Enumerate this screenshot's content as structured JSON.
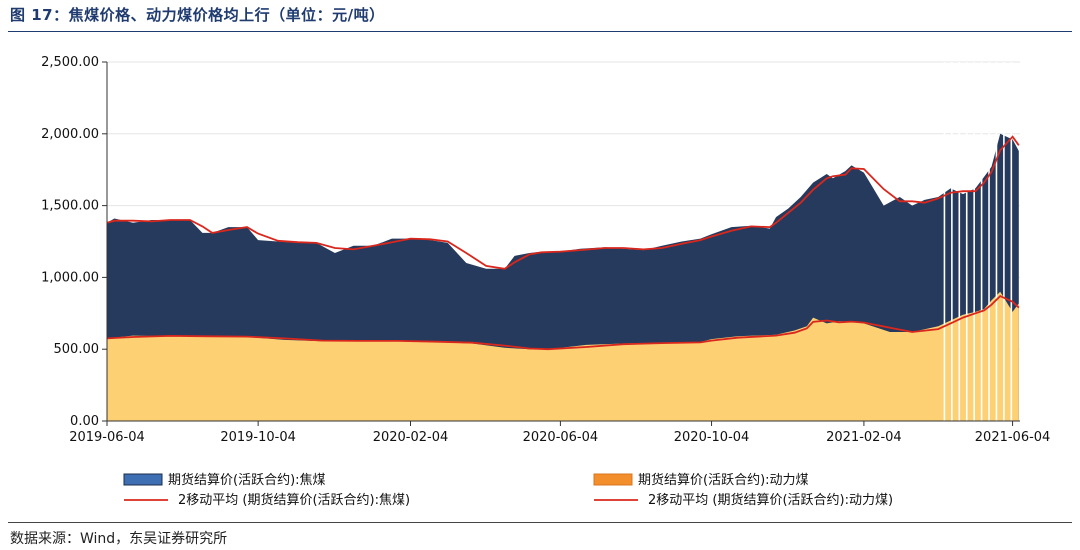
{
  "figure": {
    "title": "图 17：焦煤价格、动力煤价格均上行（单位：元/吨）",
    "source": "数据来源：Wind，东吴证券研究所"
  },
  "colors": {
    "coking": "#253a5c",
    "coking_legend": "#3f6fb3",
    "thermal": "#fdd074",
    "thermal_legend": "#f28e2b",
    "ma_line": "#d9271d"
  },
  "chart_data": {
    "type": "area",
    "title": "焦煤价格、动力煤价格均上行（单位：元/吨）",
    "xlabel": "",
    "ylabel": "",
    "ylim": [
      0,
      2500
    ],
    "xlim": [
      "2019-06-04",
      "2021-06-10"
    ],
    "yticks": [
      "0.00",
      "500.00",
      "1,000.00",
      "1,500.00",
      "2,000.00",
      "2,500.00"
    ],
    "xticks": [
      "2019-06-04",
      "2019-10-04",
      "2020-02-04",
      "2020-06-04",
      "2020-10-04",
      "2021-02-04",
      "2021-06-04"
    ],
    "legend_position": "bottom",
    "stacked": false,
    "series": [
      {
        "name": "期货结算价(活跃合约):焦煤",
        "style": "filled-area",
        "x": [
          "2019-06-04",
          "2019-06-10",
          "2019-06-25",
          "2019-07-10",
          "2019-07-25",
          "2019-08-10",
          "2019-08-20",
          "2019-08-28",
          "2019-09-10",
          "2019-09-25",
          "2019-10-04",
          "2019-10-20",
          "2019-11-05",
          "2019-11-20",
          "2019-12-05",
          "2019-12-20",
          "2020-01-05",
          "2020-01-20",
          "2020-02-04",
          "2020-02-20",
          "2020-03-05",
          "2020-03-20",
          "2020-04-05",
          "2020-04-20",
          "2020-04-28",
          "2020-05-10",
          "2020-05-20",
          "2020-06-04",
          "2020-06-20",
          "2020-07-10",
          "2020-07-25",
          "2020-08-10",
          "2020-08-25",
          "2020-09-10",
          "2020-09-25",
          "2020-10-04",
          "2020-10-20",
          "2020-11-05",
          "2020-11-20",
          "2020-11-25",
          "2020-12-05",
          "2020-12-15",
          "2020-12-25",
          "2021-01-05",
          "2021-01-10",
          "2021-01-20",
          "2021-01-25",
          "2021-02-04",
          "2021-02-20",
          "2021-03-05",
          "2021-03-15",
          "2021-03-25",
          "2021-04-05",
          "2021-04-15",
          "2021-04-25",
          "2021-05-05",
          "2021-05-12",
          "2021-05-18",
          "2021-05-25",
          "2021-06-04",
          "2021-06-09"
        ],
        "values": [
          1380,
          1410,
          1380,
          1400,
          1400,
          1400,
          1310,
          1310,
          1350,
          1350,
          1260,
          1250,
          1240,
          1240,
          1170,
          1220,
          1220,
          1270,
          1270,
          1260,
          1240,
          1100,
          1060,
          1060,
          1150,
          1170,
          1180,
          1180,
          1200,
          1210,
          1200,
          1190,
          1220,
          1250,
          1270,
          1300,
          1350,
          1360,
          1340,
          1420,
          1480,
          1560,
          1660,
          1720,
          1690,
          1740,
          1780,
          1730,
          1500,
          1560,
          1500,
          1540,
          1560,
          1620,
          1580,
          1620,
          1700,
          1770,
          2000,
          1960,
          1880
        ]
      },
      {
        "name": "期货结算价(活跃合约):动力煤",
        "style": "filled-area",
        "x": [
          "2019-06-04",
          "2019-06-25",
          "2019-07-25",
          "2019-08-25",
          "2019-09-25",
          "2019-10-25",
          "2019-11-25",
          "2019-12-25",
          "2020-01-25",
          "2020-02-25",
          "2020-03-25",
          "2020-04-20",
          "2020-05-10",
          "2020-05-25",
          "2020-06-25",
          "2020-07-25",
          "2020-08-25",
          "2020-09-25",
          "2020-10-04",
          "2020-10-25",
          "2020-11-25",
          "2020-12-10",
          "2020-12-20",
          "2020-12-25",
          "2021-01-05",
          "2021-01-15",
          "2021-01-25",
          "2021-02-04",
          "2021-02-25",
          "2021-03-15",
          "2021-04-05",
          "2021-04-15",
          "2021-04-25",
          "2021-05-05",
          "2021-05-12",
          "2021-05-18",
          "2021-05-25",
          "2021-06-04",
          "2021-06-09"
        ],
        "values": [
          575,
          595,
          590,
          590,
          585,
          565,
          555,
          560,
          555,
          550,
          540,
          510,
          500,
          500,
          530,
          540,
          545,
          550,
          570,
          590,
          600,
          630,
          660,
          720,
          680,
          695,
          690,
          680,
          620,
          620,
          660,
          700,
          740,
          760,
          780,
          840,
          900,
          760,
          820
        ]
      },
      {
        "name": "2移动平均 (期货结算价(活跃合约):焦煤)",
        "style": "line",
        "note": "2-point moving average of the coking coal series (dark red line on top of the dark area)"
      },
      {
        "name": "2移动平均 (期货结算价(活跃合约):动力煤)",
        "style": "line",
        "note": "2-point moving average of the thermal coal series (dark red line on top of the light area)"
      }
    ]
  }
}
